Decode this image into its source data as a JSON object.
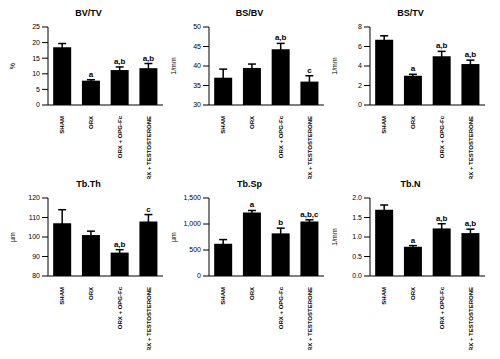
{
  "chart_data": [
    {
      "type": "bar",
      "title": "BV/TV",
      "ylabel": "%",
      "categories": [
        "SHAM",
        "ORX",
        "ORX + OPG-Fc",
        "ORX + TESTOSTERONE"
      ],
      "values": [
        18.5,
        7.8,
        11.2,
        11.8
      ],
      "errors": [
        1.2,
        0.3,
        1.0,
        1.5
      ],
      "annotations": [
        null,
        "a",
        "a,b",
        "a,b"
      ],
      "color": "#000000",
      "ylim": [
        0,
        25
      ],
      "yticks": [
        0,
        5,
        10,
        15,
        20,
        25
      ],
      "grid": false
    },
    {
      "type": "bar",
      "title": "BS/BV",
      "ylabel": "1/mm",
      "categories": [
        "SHAM",
        "ORX",
        "ORX + OPG-Fc",
        "ORX + TESTOSTERONE"
      ],
      "values": [
        37,
        39.5,
        44.3,
        36
      ],
      "errors": [
        2.2,
        1.0,
        1.5,
        1.5
      ],
      "annotations": [
        null,
        null,
        "a,b",
        "c"
      ],
      "color": "#000000",
      "ylim": [
        30,
        50
      ],
      "yticks": [
        30,
        35,
        40,
        45,
        50
      ],
      "grid": false
    },
    {
      "type": "bar",
      "title": "BS/TV",
      "ylabel": "1/mm",
      "categories": [
        "SHAM",
        "ORX",
        "ORX + OPG-Fc",
        "ORX + TESTOSTERONE"
      ],
      "values": [
        6.7,
        3.0,
        5.0,
        4.2
      ],
      "errors": [
        0.4,
        0.15,
        0.5,
        0.4
      ],
      "annotations": [
        null,
        "a",
        "a,b",
        "a,b"
      ],
      "color": "#000000",
      "ylim": [
        0,
        8
      ],
      "yticks": [
        0,
        2,
        4,
        6,
        8
      ],
      "grid": false
    },
    {
      "type": "bar",
      "title": "Tb.Th",
      "ylabel": "µm",
      "categories": [
        "SHAM",
        "ORX",
        "ORX + OPG-Fc",
        "ORX + TESTOSTERONE"
      ],
      "values": [
        107,
        101,
        92,
        108
      ],
      "errors": [
        7,
        2,
        1.5,
        3.5
      ],
      "annotations": [
        null,
        null,
        "a,b",
        "c"
      ],
      "color": "#000000",
      "ylim": [
        80,
        120
      ],
      "yticks": [
        80,
        90,
        100,
        110,
        120
      ],
      "grid": false
    },
    {
      "type": "bar",
      "title": "Tb.Sp",
      "ylabel": "µm",
      "categories": [
        "SHAM",
        "ORX",
        "ORX + OPG-Fc",
        "ORX + TESTOSTERONE"
      ],
      "values": [
        620,
        1220,
        820,
        1050
      ],
      "errors": [
        80,
        40,
        100,
        30
      ],
      "annotations": [
        null,
        "a",
        "b",
        "a,b,c"
      ],
      "color": "#000000",
      "ylim": [
        0,
        1500
      ],
      "yticks": [
        0,
        500,
        {
          "value": 1000,
          "label": "1,000"
        },
        {
          "value": 1500,
          "label": "1,500"
        }
      ],
      "grid": false
    },
    {
      "type": "bar",
      "title": "Tb.N",
      "ylabel": "1/mm",
      "categories": [
        "SHAM",
        "ORX",
        "ORX + OPG-Fc",
        "ORX + TESTOSTERONE"
      ],
      "values": [
        1.7,
        0.75,
        1.22,
        1.1
      ],
      "errors": [
        0.12,
        0.03,
        0.12,
        0.1
      ],
      "annotations": [
        null,
        "a",
        "a,b",
        "a,b"
      ],
      "color": "#000000",
      "ylim": [
        0,
        2
      ],
      "yticks": [
        {
          "value": 0,
          "label": "0.0"
        },
        {
          "value": 0.5,
          "label": "0.5"
        },
        {
          "value": 1,
          "label": "1.0"
        },
        {
          "value": 1.5,
          "label": "1.5"
        },
        {
          "value": 2,
          "label": "2.0"
        }
      ],
      "grid": false
    }
  ]
}
